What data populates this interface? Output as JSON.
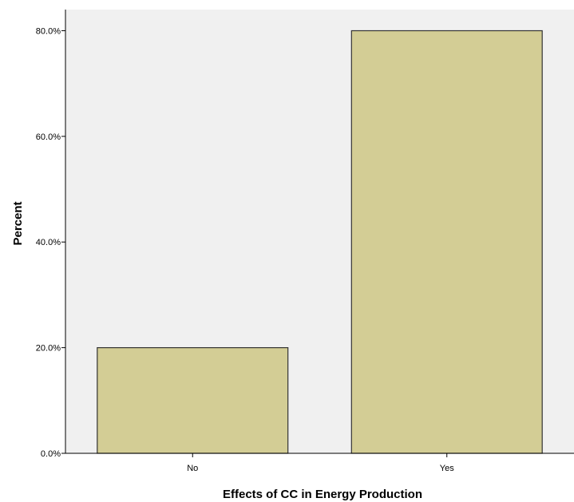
{
  "chart_data": {
    "type": "bar",
    "categories": [
      "No",
      "Yes"
    ],
    "values": [
      20,
      80
    ],
    "xlabel": "Effects of CC in Energy Production",
    "ylabel": "Percent",
    "ylim": [
      0,
      84
    ],
    "yticks": [
      {
        "value": 0,
        "label": "0.0%"
      },
      {
        "value": 20,
        "label": "20.0%"
      },
      {
        "value": 40,
        "label": "40.0%"
      },
      {
        "value": 60,
        "label": "60.0%"
      },
      {
        "value": 80,
        "label": "80.0%"
      }
    ],
    "grid": false,
    "colors": {
      "plot_background": "#f0f0f0",
      "bar_fill": "#d3cd95",
      "bar_stroke": "#333333"
    }
  }
}
